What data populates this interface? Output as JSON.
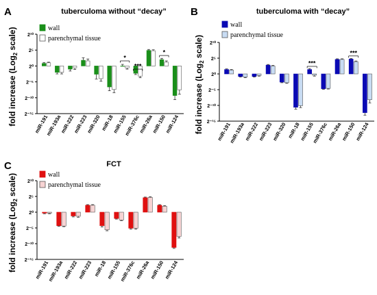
{
  "chart_data": [
    {
      "panel_label": "A",
      "type": "bar",
      "title": "tuberculoma without “decay”",
      "ylabel": "fold increase (Log₂ scale)",
      "ylim": [
        -15,
        10
      ],
      "yticks": [
        10,
        5,
        0,
        -5,
        -10,
        -15
      ],
      "ytick_labels": [
        "2¹⁰",
        "2⁵",
        "2⁰",
        "2⁻⁵",
        "2⁻¹⁰",
        "2⁻¹⁵"
      ],
      "categories": [
        "miR-191",
        "miR-193a",
        "miR-222",
        "miR-223",
        "miR-320",
        "miR-18",
        "miR-155",
        "miR-376c",
        "miR-26a",
        "miR-150",
        "miR-124"
      ],
      "series": [
        {
          "name": "wall",
          "color": "#1a8f1a",
          "values": [
            0.8,
            -2.0,
            -1.0,
            1.8,
            -2.6,
            -6.6,
            0.0,
            -2.3,
            4.9,
            2.0,
            -9.3
          ],
          "errors": [
            0.3,
            0.5,
            0.6,
            0.8,
            1.5,
            1.2,
            0.5,
            0.4,
            0.3,
            0.4,
            1.3
          ]
        },
        {
          "name": "parenchymal tissue",
          "color": "#ffffff",
          "values": [
            1.0,
            -2.0,
            -0.6,
            1.6,
            -4.0,
            -7.4,
            -0.6,
            -3.2,
            4.8,
            1.2,
            -7.5
          ],
          "errors": [
            0.2,
            0.5,
            0.5,
            0.6,
            0.8,
            1.0,
            0.4,
            0.5,
            0.3,
            0.4,
            1.4
          ]
        }
      ],
      "significance": [
        {
          "category_index": 6,
          "label": "*",
          "y": 1.6
        },
        {
          "category_index": 7,
          "label": "***",
          "y": -1.0
        },
        {
          "category_index": 9,
          "label": "*",
          "y": 3.3
        }
      ],
      "legend_position": "top-left"
    },
    {
      "panel_label": "B",
      "type": "bar",
      "title": "tuberculoma with “decay”",
      "ylabel": "fold increase (Log₂ scale)",
      "ylim": [
        -15,
        10
      ],
      "yticks": [
        10,
        5,
        0,
        -5,
        -10,
        -15
      ],
      "ytick_labels": [
        "2¹⁰",
        "2⁵",
        "2⁰",
        "2⁻⁵",
        "2⁻¹⁰",
        "2⁻¹⁵"
      ],
      "categories": [
        "miR-191",
        "miR-193a",
        "miR-222",
        "miR-223",
        "miR-320",
        "miR-18",
        "miR-155",
        "miR-376c",
        "miR-26a",
        "miR-150",
        "miR-124"
      ],
      "series": [
        {
          "name": "wall",
          "color": "#0a0ab4",
          "values": [
            1.4,
            -0.8,
            -0.8,
            2.8,
            -2.6,
            -10.6,
            1.4,
            -4.7,
            4.6,
            4.7,
            -12.3
          ],
          "errors": [
            0.2,
            0.2,
            0.2,
            0.2,
            0.2,
            0.6,
            0.3,
            0.2,
            0.2,
            0.2,
            0.8
          ]
        },
        {
          "name": "parenchymal tissue",
          "color": "#c8dcf3",
          "values": [
            1.2,
            -1.0,
            -0.5,
            2.5,
            -2.8,
            -10.1,
            -0.4,
            -4.6,
            4.6,
            3.9,
            -8.2
          ],
          "errors": [
            0.2,
            0.2,
            0.2,
            0.2,
            0.2,
            0.6,
            0.3,
            0.2,
            0.2,
            0.2,
            1.0
          ]
        }
      ],
      "significance": [
        {
          "category_index": 6,
          "label": "***",
          "y": 2.4
        },
        {
          "category_index": 9,
          "label": "***",
          "y": 5.7
        }
      ],
      "legend_position": "top-left"
    },
    {
      "panel_label": "C",
      "type": "bar",
      "title": "FCT",
      "ylabel": "fold increase (Log₂ scale)",
      "ylim": [
        -15,
        10
      ],
      "yticks": [
        10,
        5,
        0,
        -5,
        -10,
        -15
      ],
      "ytick_labels": [
        "2¹⁰",
        "2⁵",
        "2⁰",
        "2⁻⁵",
        "2⁻¹⁰",
        "2⁻¹⁵"
      ],
      "categories": [
        "miR-191",
        "miR-193a",
        "miR-222",
        "miR-223",
        "miR-18",
        "miR-155",
        "miR-376c",
        "miR-26a",
        "miR-150",
        "miR-124"
      ],
      "series": [
        {
          "name": "wall",
          "color": "#e01010",
          "values": [
            -0.3,
            -4.3,
            -1.2,
            2.2,
            -4.3,
            -2.0,
            -5.1,
            4.6,
            2.2,
            -11.2
          ],
          "errors": [
            0.2,
            0.2,
            0.3,
            0.2,
            0.4,
            0.2,
            0.3,
            0.2,
            0.2,
            0.3
          ]
        },
        {
          "name": "parenchymal tissue",
          "color": "#f7d3d3",
          "values": [
            -0.3,
            -4.4,
            -1.3,
            2.2,
            -5.6,
            -2.5,
            -5.1,
            4.7,
            1.9,
            -7.7
          ],
          "errors": [
            0.2,
            0.2,
            0.3,
            0.2,
            0.3,
            0.2,
            0.3,
            0.2,
            0.2,
            0.5
          ]
        }
      ],
      "significance": [],
      "legend_position": "top-left"
    }
  ]
}
